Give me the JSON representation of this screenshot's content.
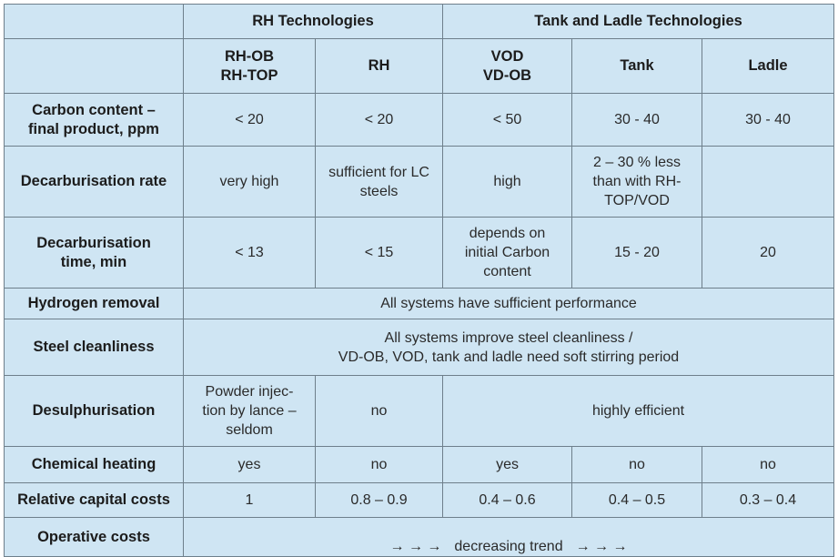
{
  "headers": {
    "group_rh": "RH Technologies",
    "group_tank": "Tank and Ladle Technologies",
    "rhob": "RH-OB\nRH-TOP",
    "rh": "RH",
    "vod": "VOD\nVD-OB",
    "tank": "Tank",
    "ladle": "Ladle"
  },
  "rows": {
    "carbon": {
      "label": "Carbon content –\nfinal product, ppm",
      "rhob": "< 20",
      "rh": "< 20",
      "vod": "< 50",
      "tank": "30 - 40",
      "ladle": "30 - 40"
    },
    "decarb_rate": {
      "label": "Decarburisation rate",
      "rhob": "very high",
      "rh": "sufficient for LC\nsteels",
      "vod": "high",
      "tank": "2 – 30 % less\nthan with RH-\nTOP/VOD",
      "ladle": ""
    },
    "decarb_time": {
      "label": "Decarburisation\ntime, min",
      "rhob": "< 13",
      "rh": "< 15",
      "vod": "depends on\ninitial Carbon\ncontent",
      "tank": "15 - 20",
      "ladle": "20"
    },
    "hydrogen": {
      "label": "Hydrogen removal",
      "all": "All systems have sufficient performance"
    },
    "cleanliness": {
      "label": "Steel cleanliness",
      "all": "All systems improve steel cleanliness /\nVD-OB, VOD, tank and ladle need soft stirring period"
    },
    "desulph": {
      "label": "Desulphurisation",
      "rhob": "Powder injec-\ntion by lance –\nseldom",
      "rh": "no",
      "rest": "highly efficient"
    },
    "chem_heat": {
      "label": "Chemical heating",
      "rhob": "yes",
      "rh": "no",
      "vod": "yes",
      "tank": "no",
      "ladle": "no"
    },
    "capital": {
      "label": "Relative capital costs",
      "rhob": "1",
      "rh": "0.8 – 0.9",
      "vod": "0.4 – 0.6",
      "tank": "0.4 – 0.5",
      "ladle": "0.3 – 0.4"
    },
    "operative": {
      "label": "Operative costs",
      "arrows_left": "→   →   →",
      "text": "decreasing trend",
      "arrows_right": "→   →   →"
    }
  }
}
